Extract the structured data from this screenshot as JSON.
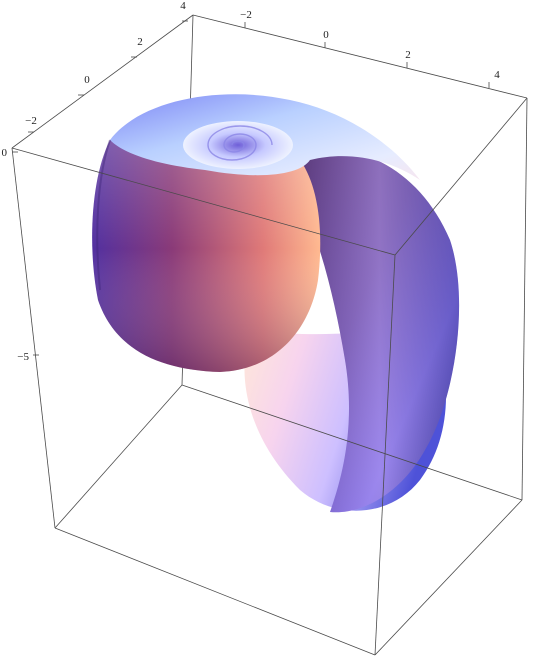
{
  "chart_data": {
    "type": "surface3d",
    "title": "",
    "xlabel": "",
    "ylabel": "",
    "zlabel": "",
    "surface": "seashell",
    "box": true,
    "axes": {
      "x": {
        "ticks": [
          "−2",
          "0",
          "2",
          "4"
        ],
        "range": [
          -3.3,
          5.2
        ]
      },
      "y": {
        "ticks": [
          "−2",
          "0",
          "2",
          "4"
        ],
        "range": [
          -3.4,
          4.2
        ]
      },
      "z": {
        "ticks": [
          "0",
          "−5"
        ],
        "range": [
          -10.3,
          0.2
        ]
      }
    },
    "colors": {
      "deep_violet": "#4b2f8a",
      "blue": "#6f7cf2",
      "light_blue": "#c7d8ff",
      "pink": "#f2b9cf",
      "salmon": "#f49a8a",
      "maroon": "#7a2a56",
      "dark_purple": "#4d3070"
    }
  }
}
